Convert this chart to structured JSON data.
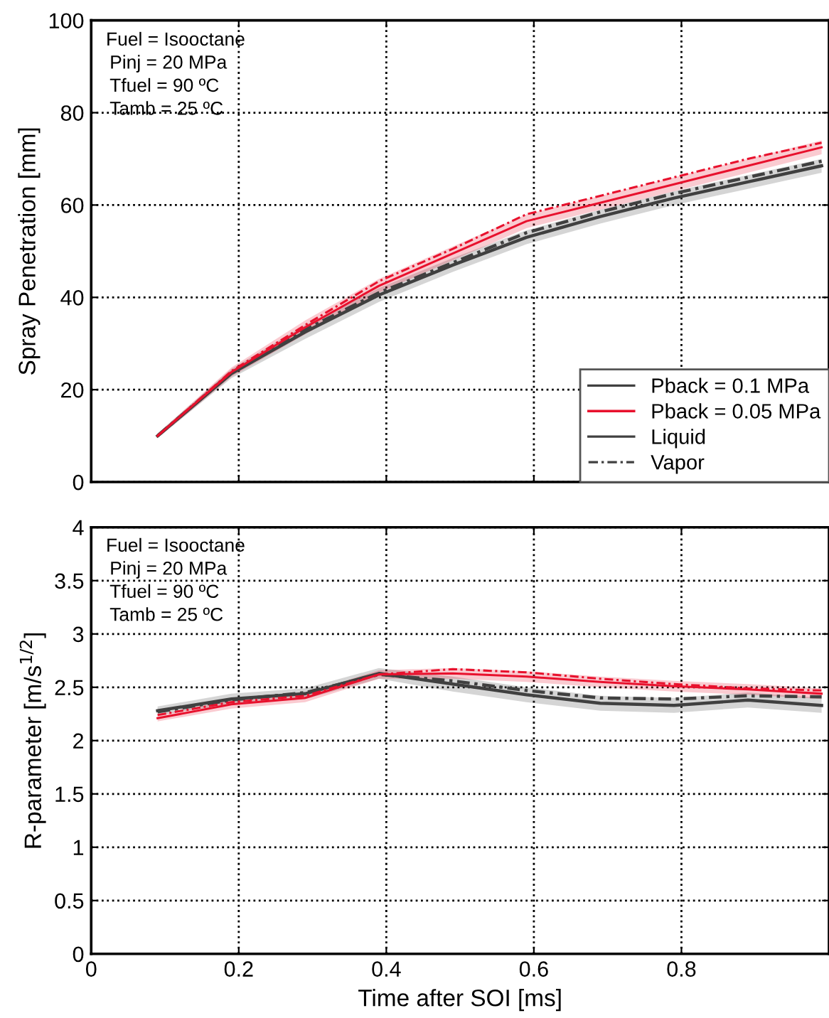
{
  "chart_data": [
    {
      "type": "line",
      "ylabel": "Spray Penetration [mm]",
      "xlim": [
        0,
        1
      ],
      "xticks": [
        0,
        0.2,
        0.4,
        0.6,
        0.8
      ],
      "ylim": [
        0,
        100
      ],
      "yticks": [
        0,
        20,
        40,
        60,
        80,
        100
      ],
      "grid": true,
      "tick_labels": "y",
      "legend": "bottom right",
      "annotations": [
        "Fuel = Isooctane",
        "Pinj = 20 MPa",
        "Tfuel = 90 ºC",
        "Tamb = 25 ºC",
        "Liquid",
        "Vapor"
      ],
      "x": [
        0.09,
        0.19,
        0.29,
        0.39,
        0.49,
        0.59,
        0.69,
        0.79,
        0.89,
        0.99
      ],
      "series": [
        {
          "name": "Pback = 0.1 MPa",
          "color": "#404040",
          "line_style": "solid",
          "values": [
            10,
            23.5,
            32.5,
            40.5,
            47,
            53,
            57.5,
            61.5,
            65,
            68.5
          ],
          "lower": [
            9.5,
            22.5,
            31,
            39,
            45.5,
            51.5,
            56,
            60,
            63.5,
            67
          ],
          "upper": [
            10.5,
            24.5,
            34,
            42,
            48.5,
            54.5,
            59,
            63,
            66.5,
            70
          ]
        },
        {
          "name": "Pback = 0.05 MPa",
          "color": "#e8112d",
          "line_style": "solid",
          "values": [
            10,
            23.8,
            33.5,
            42.5,
            49.5,
            56.5,
            60.5,
            64.5,
            68.5,
            72.5
          ],
          "lower": [
            9.5,
            22.8,
            32,
            41,
            48,
            55,
            59,
            63,
            67,
            71
          ],
          "upper": [
            10.5,
            24.8,
            35,
            44,
            51,
            58,
            62,
            66,
            70,
            74
          ]
        },
        {
          "color": "#404040",
          "line_style": "dashdot",
          "values": [
            10,
            23.7,
            33,
            41,
            47.5,
            54,
            58.5,
            62.5,
            66,
            69.5
          ]
        },
        {
          "color": "#e8112d",
          "line_style": "dashdot",
          "values": [
            10,
            24,
            34,
            43.5,
            50.5,
            58,
            62,
            66,
            70,
            73.5
          ]
        }
      ]
    },
    {
      "type": "line",
      "xlabel": "Time after SOI [ms]",
      "ylabel": "R-parameter [m/s$^{1/2}$]",
      "xlim": [
        0,
        1
      ],
      "xticks": [
        0,
        0.2,
        0.4,
        0.6,
        0.8
      ],
      "ylim": [
        0,
        4
      ],
      "yticks": [
        0,
        {
          "value": 0.5,
          "label": "0.5"
        },
        1,
        {
          "value": 1.5,
          "label": "1.5"
        },
        2,
        {
          "value": 2.5,
          "label": "2.5"
        },
        3,
        {
          "value": 3.5,
          "label": "3.5"
        },
        4
      ],
      "grid": true,
      "annotations": [
        "Fuel = Isooctane",
        "Pinj = 20 MPa",
        "Tfuel = 90 ºC",
        "Tamb = 25 ºC"
      ],
      "x": [
        0.09,
        0.19,
        0.29,
        0.39,
        0.49,
        0.59,
        0.69,
        0.79,
        0.89,
        0.99
      ],
      "series": [
        {
          "color": "#404040",
          "line_style": "solid",
          "values": [
            2.28,
            2.39,
            2.44,
            2.63,
            2.53,
            2.43,
            2.35,
            2.33,
            2.38,
            2.33
          ],
          "lower": [
            2.24,
            2.34,
            2.39,
            2.58,
            2.46,
            2.36,
            2.28,
            2.26,
            2.31,
            2.26
          ],
          "upper": [
            2.32,
            2.44,
            2.49,
            2.68,
            2.6,
            2.5,
            2.42,
            2.4,
            2.45,
            2.4
          ]
        },
        {
          "color": "#e8112d",
          "line_style": "solid",
          "values": [
            2.21,
            2.34,
            2.4,
            2.62,
            2.63,
            2.6,
            2.55,
            2.51,
            2.48,
            2.44
          ],
          "lower": [
            2.18,
            2.3,
            2.36,
            2.58,
            2.58,
            2.55,
            2.5,
            2.46,
            2.43,
            2.39
          ],
          "upper": [
            2.24,
            2.38,
            2.44,
            2.66,
            2.68,
            2.65,
            2.6,
            2.56,
            2.53,
            2.49
          ]
        },
        {
          "color": "#404040",
          "line_style": "dashdot",
          "values": [
            2.27,
            2.38,
            2.45,
            2.62,
            2.56,
            2.47,
            2.4,
            2.39,
            2.42,
            2.41
          ]
        },
        {
          "color": "#e8112d",
          "line_style": "dashdot",
          "values": [
            2.24,
            2.36,
            2.42,
            2.62,
            2.67,
            2.64,
            2.58,
            2.53,
            2.49,
            2.47
          ]
        }
      ]
    }
  ]
}
